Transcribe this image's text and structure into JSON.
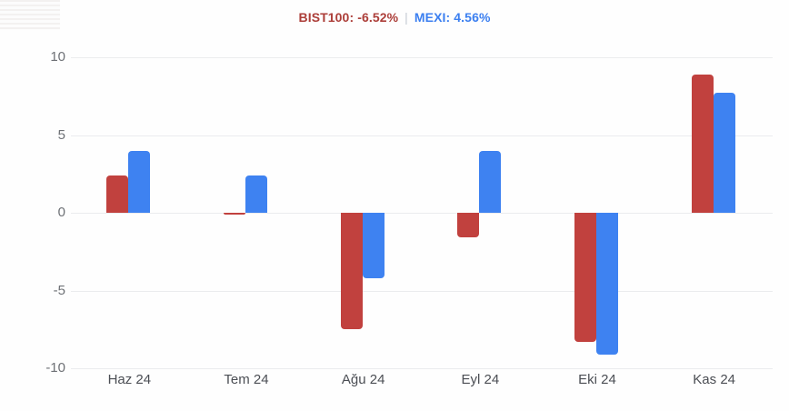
{
  "header": {
    "series1_label": "BIST100: -6.52%",
    "separator": "|",
    "series2_label": "MEXI: 4.56%",
    "series1_color": "#ac3e39",
    "series2_color": "#3b7ff0",
    "separator_color": "#c3c9d2"
  },
  "chart_data": {
    "type": "bar",
    "title": "BIST100: -6.52% | MEXI: 4.56%",
    "categories": [
      "Haz 24",
      "Tem 24",
      "Ağu 24",
      "Eyl 24",
      "Eki 24",
      "Kas 24"
    ],
    "series": [
      {
        "name": "BIST100",
        "color": "#c1413e",
        "values": [
          2.4,
          -0.1,
          -7.5,
          -1.6,
          -8.3,
          8.9
        ]
      },
      {
        "name": "MEXI",
        "color": "#3e82f1",
        "values": [
          4.0,
          2.4,
          -4.2,
          4.0,
          -9.1,
          7.7
        ]
      }
    ],
    "xlabel": "",
    "ylabel": "",
    "ylim": [
      -10,
      10
    ],
    "yticks": [
      10,
      5,
      0,
      -5,
      -10
    ],
    "grid": true,
    "legend_position": "top-center"
  }
}
